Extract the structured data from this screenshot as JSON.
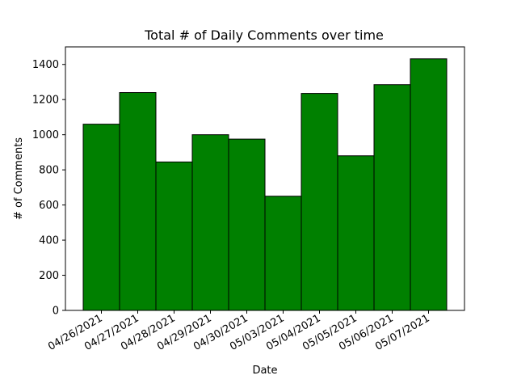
{
  "chart_data": {
    "type": "bar",
    "title": "Total # of Daily Comments over time",
    "xlabel": "Date",
    "ylabel": "# of Comments",
    "categories": [
      "04/26/2021",
      "04/27/2021",
      "04/28/2021",
      "04/29/2021",
      "04/30/2021",
      "05/03/2021",
      "05/04/2021",
      "05/05/2021",
      "05/06/2021",
      "05/07/2021"
    ],
    "values": [
      1060,
      1240,
      845,
      1000,
      975,
      650,
      1235,
      880,
      1285,
      1432
    ],
    "ylim": [
      0,
      1500
    ],
    "yticks": [
      0,
      200,
      400,
      600,
      800,
      1000,
      1200,
      1400
    ],
    "bar_color": "#008000",
    "edge_color": "#000000",
    "grid": false,
    "legend": "none"
  }
}
